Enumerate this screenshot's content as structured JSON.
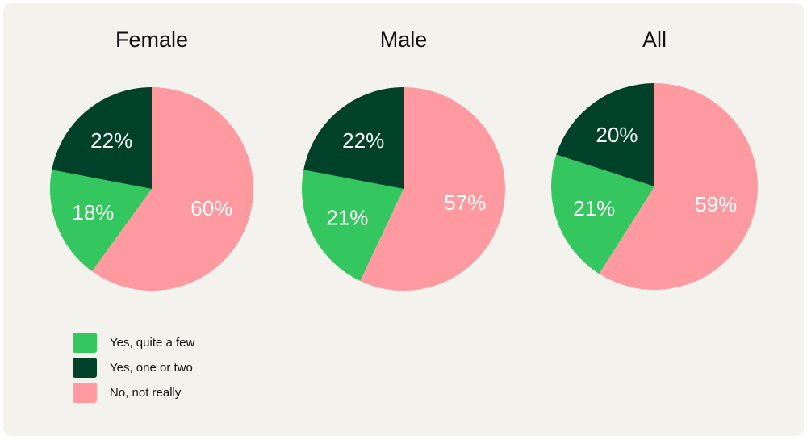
{
  "chart_data": [
    {
      "type": "pie",
      "title": "Female",
      "categories": [
        "Yes, quite a few",
        "Yes, one or two",
        "No, not really"
      ],
      "values": [
        18,
        22,
        60
      ],
      "labels": [
        "18%",
        "22%",
        "60%"
      ]
    },
    {
      "type": "pie",
      "title": "Male",
      "categories": [
        "Yes, quite a few",
        "Yes, one or two",
        "No, not really"
      ],
      "values": [
        21,
        22,
        57
      ],
      "labels": [
        "21%",
        "22%",
        "57%"
      ]
    },
    {
      "type": "pie",
      "title": "All",
      "categories": [
        "Yes, quite a few",
        "Yes, one or two",
        "No, not really"
      ],
      "values": [
        21,
        20,
        59
      ],
      "labels": [
        "21%",
        "20%",
        "59%"
      ]
    }
  ],
  "legend": {
    "placement": "bottom-left",
    "items": [
      {
        "label": "Yes, quite a few",
        "color": "#34c75f"
      },
      {
        "label": "Yes, one or two",
        "color": "#004229"
      },
      {
        "label": "No, not really",
        "color": "#ff9aa0"
      }
    ]
  },
  "colors": {
    "background": "#f4f2ec",
    "yes_quite_a_few": "#34c75f",
    "yes_one_or_two": "#004229",
    "no_not_really": "#ff9aa0"
  }
}
